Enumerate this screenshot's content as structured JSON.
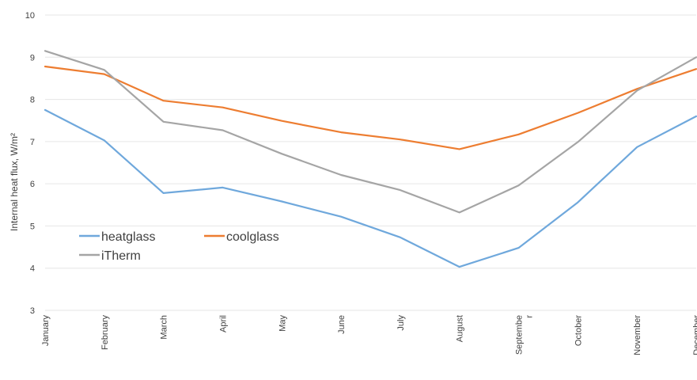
{
  "chart_data": {
    "type": "line",
    "title": "",
    "xlabel": "",
    "ylabel": "Internal heat flux, W/m²",
    "ylim": [
      3,
      10
    ],
    "yticks": [
      3,
      4,
      5,
      6,
      7,
      8,
      9,
      10
    ],
    "grid": "horizontal",
    "legend_position": "lower-left",
    "categories": [
      "January",
      "February",
      "March",
      "April",
      "May",
      "June",
      "July",
      "August",
      "Septembe\nr",
      "October",
      "November",
      "December"
    ],
    "series": [
      {
        "name": "heatglass",
        "color": "#6fa8dc",
        "values": [
          7.75,
          7.03,
          5.78,
          5.91,
          5.58,
          5.22,
          4.73,
          4.03,
          4.48,
          5.56,
          6.87,
          7.6
        ]
      },
      {
        "name": "coolglass",
        "color": "#ed7d31",
        "values": [
          8.78,
          8.6,
          7.97,
          7.81,
          7.49,
          7.22,
          7.05,
          6.82,
          7.17,
          7.68,
          8.25,
          8.72
        ]
      },
      {
        "name": "iTherm",
        "color": "#a5a5a5",
        "values": [
          9.15,
          8.7,
          7.47,
          7.27,
          6.71,
          6.21,
          5.85,
          5.32,
          5.96,
          6.99,
          8.21,
          9.0
        ]
      }
    ]
  }
}
